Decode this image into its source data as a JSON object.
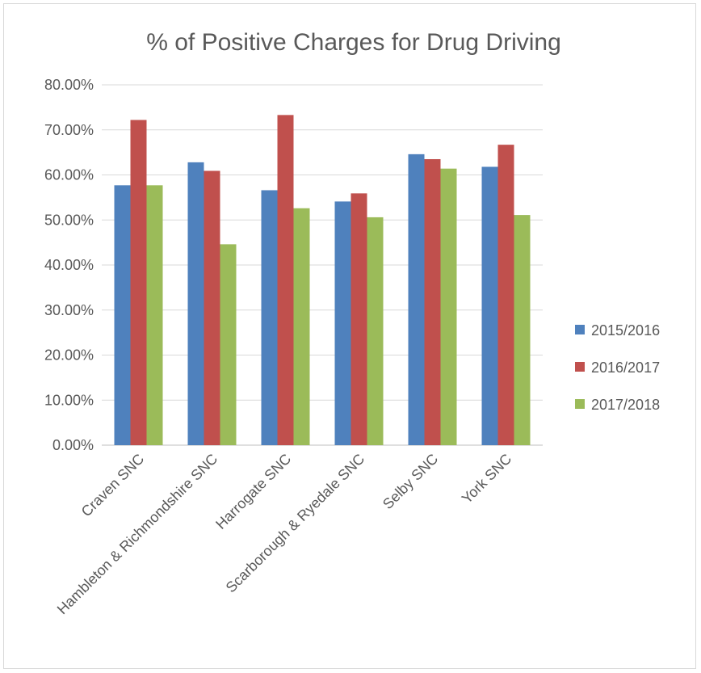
{
  "chart_data": {
    "type": "bar",
    "title": "% of Positive Charges for Drug Driving",
    "xlabel": "",
    "ylabel": "",
    "categories": [
      "Craven SNC",
      "Hambleton & Richmondshire SNC",
      "Harrogate SNC",
      "Scarborough & Ryedale SNC",
      "Selby SNC",
      "York SNC"
    ],
    "series": [
      {
        "name": "2015/2016",
        "values": [
          57.7,
          62.8,
          56.6,
          54.1,
          64.6,
          61.8
        ],
        "color": "#4f81bd"
      },
      {
        "name": "2016/2017",
        "values": [
          72.2,
          60.9,
          73.3,
          55.9,
          63.5,
          66.7
        ],
        "color": "#c0504d"
      },
      {
        "name": "2017/2018",
        "values": [
          57.7,
          44.6,
          52.6,
          50.6,
          61.4,
          51.1
        ],
        "color": "#9bbb59"
      }
    ],
    "ylim": [
      0,
      80
    ],
    "yticks": [
      "0.00%",
      "10.00%",
      "20.00%",
      "30.00%",
      "40.00%",
      "50.00%",
      "60.00%",
      "70.00%",
      "80.00%"
    ],
    "grid": true,
    "legend_position": "right"
  }
}
